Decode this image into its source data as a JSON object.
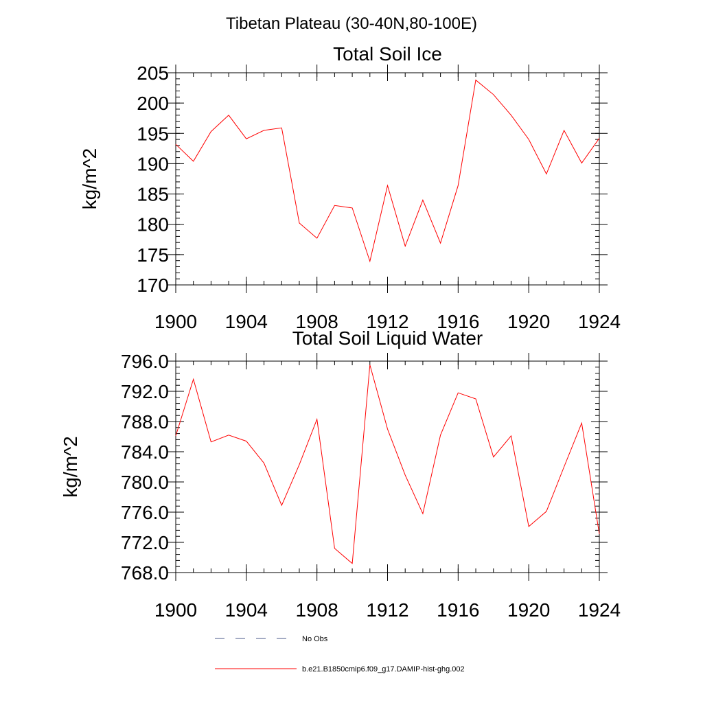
{
  "figure_title": "Tibetan Plateau (30-40N,80-100E)",
  "colors": {
    "model_line": "#ff0000",
    "obs_line": "#4a5a8a",
    "axes": "#000000"
  },
  "legend": [
    {
      "label": "No Obs",
      "style": "dashed",
      "color": "#4a5a8a"
    },
    {
      "label": "b.e21.B1850cmip6.f09_g17.DAMIP-hist-ghg.002",
      "style": "solid",
      "color": "#ff0000"
    }
  ],
  "chart_data": [
    {
      "type": "line",
      "title": "Total Soil Ice",
      "xlabel": "",
      "ylabel": "kg/m^2",
      "xlim": [
        1900,
        1924
      ],
      "ylim": [
        170,
        205
      ],
      "xticks": [
        1900,
        1904,
        1908,
        1912,
        1916,
        1920,
        1924
      ],
      "xtick_labels": [
        "1900",
        "1904",
        "1908",
        "1912",
        "1916",
        "1920",
        "1924"
      ],
      "yticks": [
        170,
        175,
        180,
        185,
        190,
        195,
        200,
        205
      ],
      "ytick_labels": [
        "170",
        "175",
        "180",
        "185",
        "190",
        "195",
        "200",
        "205"
      ],
      "grid": false,
      "series": [
        {
          "name": "b.e21.B1850cmip6.f09_g17.DAMIP-hist-ghg.002",
          "color": "#ff0000",
          "x": [
            1900,
            1901,
            1902,
            1903,
            1904,
            1905,
            1906,
            1907,
            1908,
            1909,
            1910,
            1911,
            1912,
            1913,
            1914,
            1915,
            1916,
            1917,
            1918,
            1919,
            1920,
            1921,
            1922,
            1923,
            1924
          ],
          "y": [
            193.2,
            190.4,
            195.3,
            198.0,
            194.1,
            195.5,
            195.9,
            180.2,
            177.7,
            183.1,
            182.7,
            173.9,
            186.4,
            176.4,
            184.0,
            176.9,
            186.4,
            203.8,
            201.4,
            198.0,
            194.0,
            188.3,
            195.5,
            190.1,
            194.2
          ]
        }
      ]
    },
    {
      "type": "line",
      "title": "Total Soil Liquid Water",
      "xlabel": "",
      "ylabel": "kg/m^2",
      "xlim": [
        1900,
        1924
      ],
      "ylim": [
        768,
        796
      ],
      "xticks": [
        1900,
        1904,
        1908,
        1912,
        1916,
        1920,
        1924
      ],
      "xtick_labels": [
        "1900",
        "1904",
        "1908",
        "1912",
        "1916",
        "1920",
        "1924"
      ],
      "yticks": [
        768,
        772,
        776,
        780,
        784,
        788,
        792,
        796
      ],
      "ytick_labels": [
        "768.0",
        "772.0",
        "776.0",
        "780.0",
        "784.0",
        "788.0",
        "792.0",
        "796.0"
      ],
      "grid": false,
      "series": [
        {
          "name": "b.e21.B1850cmip6.f09_g17.DAMIP-hist-ghg.002",
          "color": "#ff0000",
          "x": [
            1900,
            1901,
            1902,
            1903,
            1904,
            1905,
            1906,
            1907,
            1908,
            1909,
            1910,
            1911,
            1912,
            1913,
            1914,
            1915,
            1916,
            1917,
            1918,
            1919,
            1920,
            1921,
            1922,
            1923,
            1924
          ],
          "y": [
            786.1,
            793.6,
            785.3,
            786.2,
            785.4,
            782.5,
            776.9,
            782.3,
            788.3,
            771.2,
            769.2,
            795.5,
            787.0,
            780.9,
            775.8,
            786.2,
            791.8,
            791.0,
            783.3,
            786.1,
            774.1,
            776.1,
            782.0,
            787.8,
            773.1
          ]
        }
      ]
    }
  ]
}
